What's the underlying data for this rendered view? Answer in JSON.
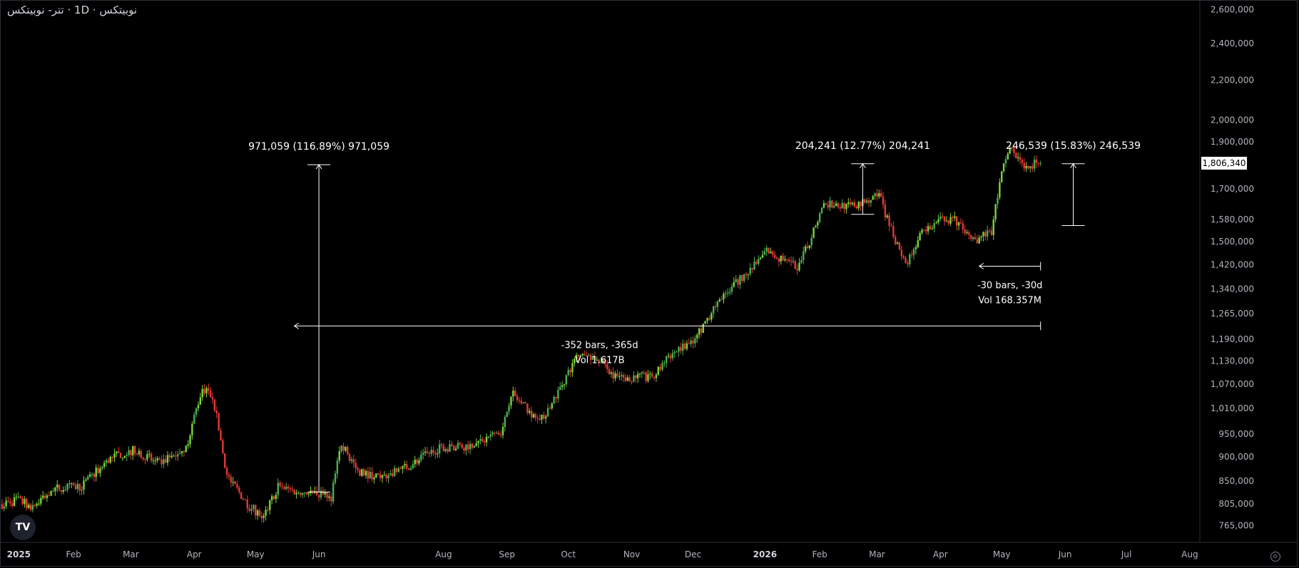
{
  "header": {
    "title": "نوبیتکس · 1D · تتر- نوبیتکس"
  },
  "colors": {
    "up": "#4caf50",
    "up_bright": "#7ad63a",
    "down": "#e53935",
    "background": "#000000",
    "axis_text": "#b2b5be",
    "price_label_bg": "#ffffff"
  },
  "icons": {
    "logo": "tradingview-logo-icon",
    "settings": "gear-icon"
  },
  "logo_text": "TV",
  "chart_data": {
    "type": "candlestick",
    "y_scale": "log",
    "ylim": [
      735000,
      2660000
    ],
    "y_ticks": [
      "765,000",
      "805,000",
      "850,000",
      "900,000",
      "950,000",
      "1,010,000",
      "1,070,000",
      "1,130,000",
      "1,190,000",
      "1,265,000",
      "1,340,000",
      "1,420,000",
      "1,500,000",
      "1,580,000",
      "1,700,000",
      "1,806,340",
      "1,900,000",
      "2,000,000",
      "2,200,000",
      "2,400,000",
      "2,600,000"
    ],
    "current_price": "1,806,340",
    "x_range": [
      "2024-12-27",
      "2026-08-30"
    ],
    "x_ticks": [
      {
        "label": "2025",
        "date": "2025-01-01",
        "bold": true
      },
      {
        "label": "Feb",
        "date": "2025-02-01"
      },
      {
        "label": "Mar",
        "date": "2025-03-01"
      },
      {
        "label": "Apr",
        "date": "2025-04-01"
      },
      {
        "label": "May",
        "date": "2025-05-01"
      },
      {
        "label": "Jun",
        "date": "2025-06-01"
      },
      {
        "label": "Aug",
        "date": "2025-08-01"
      },
      {
        "label": "Sep",
        "date": "2025-09-01"
      },
      {
        "label": "Oct",
        "date": "2025-10-01"
      },
      {
        "label": "Nov",
        "date": "2025-11-01"
      },
      {
        "label": "Dec",
        "date": "2025-12-01"
      },
      {
        "label": "2026",
        "date": "2026-01-01",
        "bold": true
      },
      {
        "label": "Feb",
        "date": "2026-02-01"
      },
      {
        "label": "Mar",
        "date": "2026-03-01"
      },
      {
        "label": "Apr",
        "date": "2026-04-01"
      },
      {
        "label": "May",
        "date": "2026-05-01"
      },
      {
        "label": "Jun",
        "date": "2026-06-01"
      },
      {
        "label": "Jul",
        "date": "2026-07-01"
      },
      {
        "label": "Aug",
        "date": "2026-08-01"
      }
    ],
    "price_path": [
      [
        "2024-12-28",
        805000
      ],
      [
        "2025-01-05",
        812000
      ],
      [
        "2025-01-12",
        800000
      ],
      [
        "2025-01-22",
        835000
      ],
      [
        "2025-02-05",
        840000
      ],
      [
        "2025-02-20",
        900000
      ],
      [
        "2025-03-03",
        915000
      ],
      [
        "2025-03-15",
        885000
      ],
      [
        "2025-03-28",
        920000
      ],
      [
        "2025-04-05",
        1060000
      ],
      [
        "2025-04-10",
        1040000
      ],
      [
        "2025-04-17",
        860000
      ],
      [
        "2025-04-28",
        800000
      ],
      [
        "2025-05-05",
        780000
      ],
      [
        "2025-05-12",
        840000
      ],
      [
        "2025-05-20",
        830000
      ],
      [
        "2025-06-01",
        825000
      ],
      [
        "2025-06-07",
        818000
      ],
      [
        "2025-06-12",
        930000
      ],
      [
        "2025-06-20",
        870000
      ],
      [
        "2025-07-01",
        858000
      ],
      [
        "2025-07-10",
        870000
      ],
      [
        "2025-07-30",
        920000
      ],
      [
        "2025-08-15",
        925000
      ],
      [
        "2025-08-30",
        960000
      ],
      [
        "2025-09-03",
        1050000
      ],
      [
        "2025-09-12",
        1000000
      ],
      [
        "2025-09-20",
        990000
      ],
      [
        "2025-10-05",
        1140000
      ],
      [
        "2025-10-15",
        1140000
      ],
      [
        "2025-10-25",
        1085000
      ],
      [
        "2025-11-12",
        1090000
      ],
      [
        "2025-11-20",
        1150000
      ],
      [
        "2025-12-01",
        1180000
      ],
      [
        "2025-12-10",
        1270000
      ],
      [
        "2025-12-25",
        1380000
      ],
      [
        "2026-01-01",
        1420000
      ],
      [
        "2026-01-06",
        1470000
      ],
      [
        "2026-01-15",
        1425000
      ],
      [
        "2026-01-22",
        1415000
      ],
      [
        "2026-01-28",
        1520000
      ],
      [
        "2026-02-03",
        1640000
      ],
      [
        "2026-02-15",
        1630000
      ],
      [
        "2026-02-25",
        1650000
      ],
      [
        "2026-03-02",
        1690000
      ],
      [
        "2026-03-05",
        1600000
      ],
      [
        "2026-03-15",
        1415000
      ],
      [
        "2026-03-22",
        1520000
      ],
      [
        "2026-04-01",
        1580000
      ],
      [
        "2026-04-08",
        1580000
      ],
      [
        "2026-04-17",
        1500000
      ],
      [
        "2026-04-26",
        1540000
      ],
      [
        "2026-05-01",
        1760000
      ],
      [
        "2026-05-05",
        1880000
      ],
      [
        "2026-05-12",
        1800000
      ],
      [
        "2026-05-20",
        1806340
      ]
    ],
    "annotations": [
      {
        "type": "price_range",
        "label": "971,059 (116.89%) 971,059",
        "x": "2025-06-01",
        "y_from": 828000,
        "y_to": 1800000
      },
      {
        "type": "price_range",
        "label": "204,241 (12.77%) 204,241",
        "x": "2026-02-22",
        "y_from": 1600000,
        "y_to": 1804000
      },
      {
        "type": "price_range",
        "label": "246,539 (15.83%) 246,539",
        "x": "2026-06-05",
        "y_from": 1558000,
        "y_to": 1804000
      },
      {
        "type": "date_range",
        "label": "-352 bars, -365d",
        "vol": "Vol 1.617B",
        "x_from": "2025-05-20",
        "x_to": "2026-05-20",
        "y": 1228000
      },
      {
        "type": "date_range",
        "label": "-30 bars, -30d",
        "vol": "Vol 168.357M",
        "x_from": "2026-04-20",
        "x_to": "2026-05-20",
        "y": 1415000
      }
    ]
  }
}
